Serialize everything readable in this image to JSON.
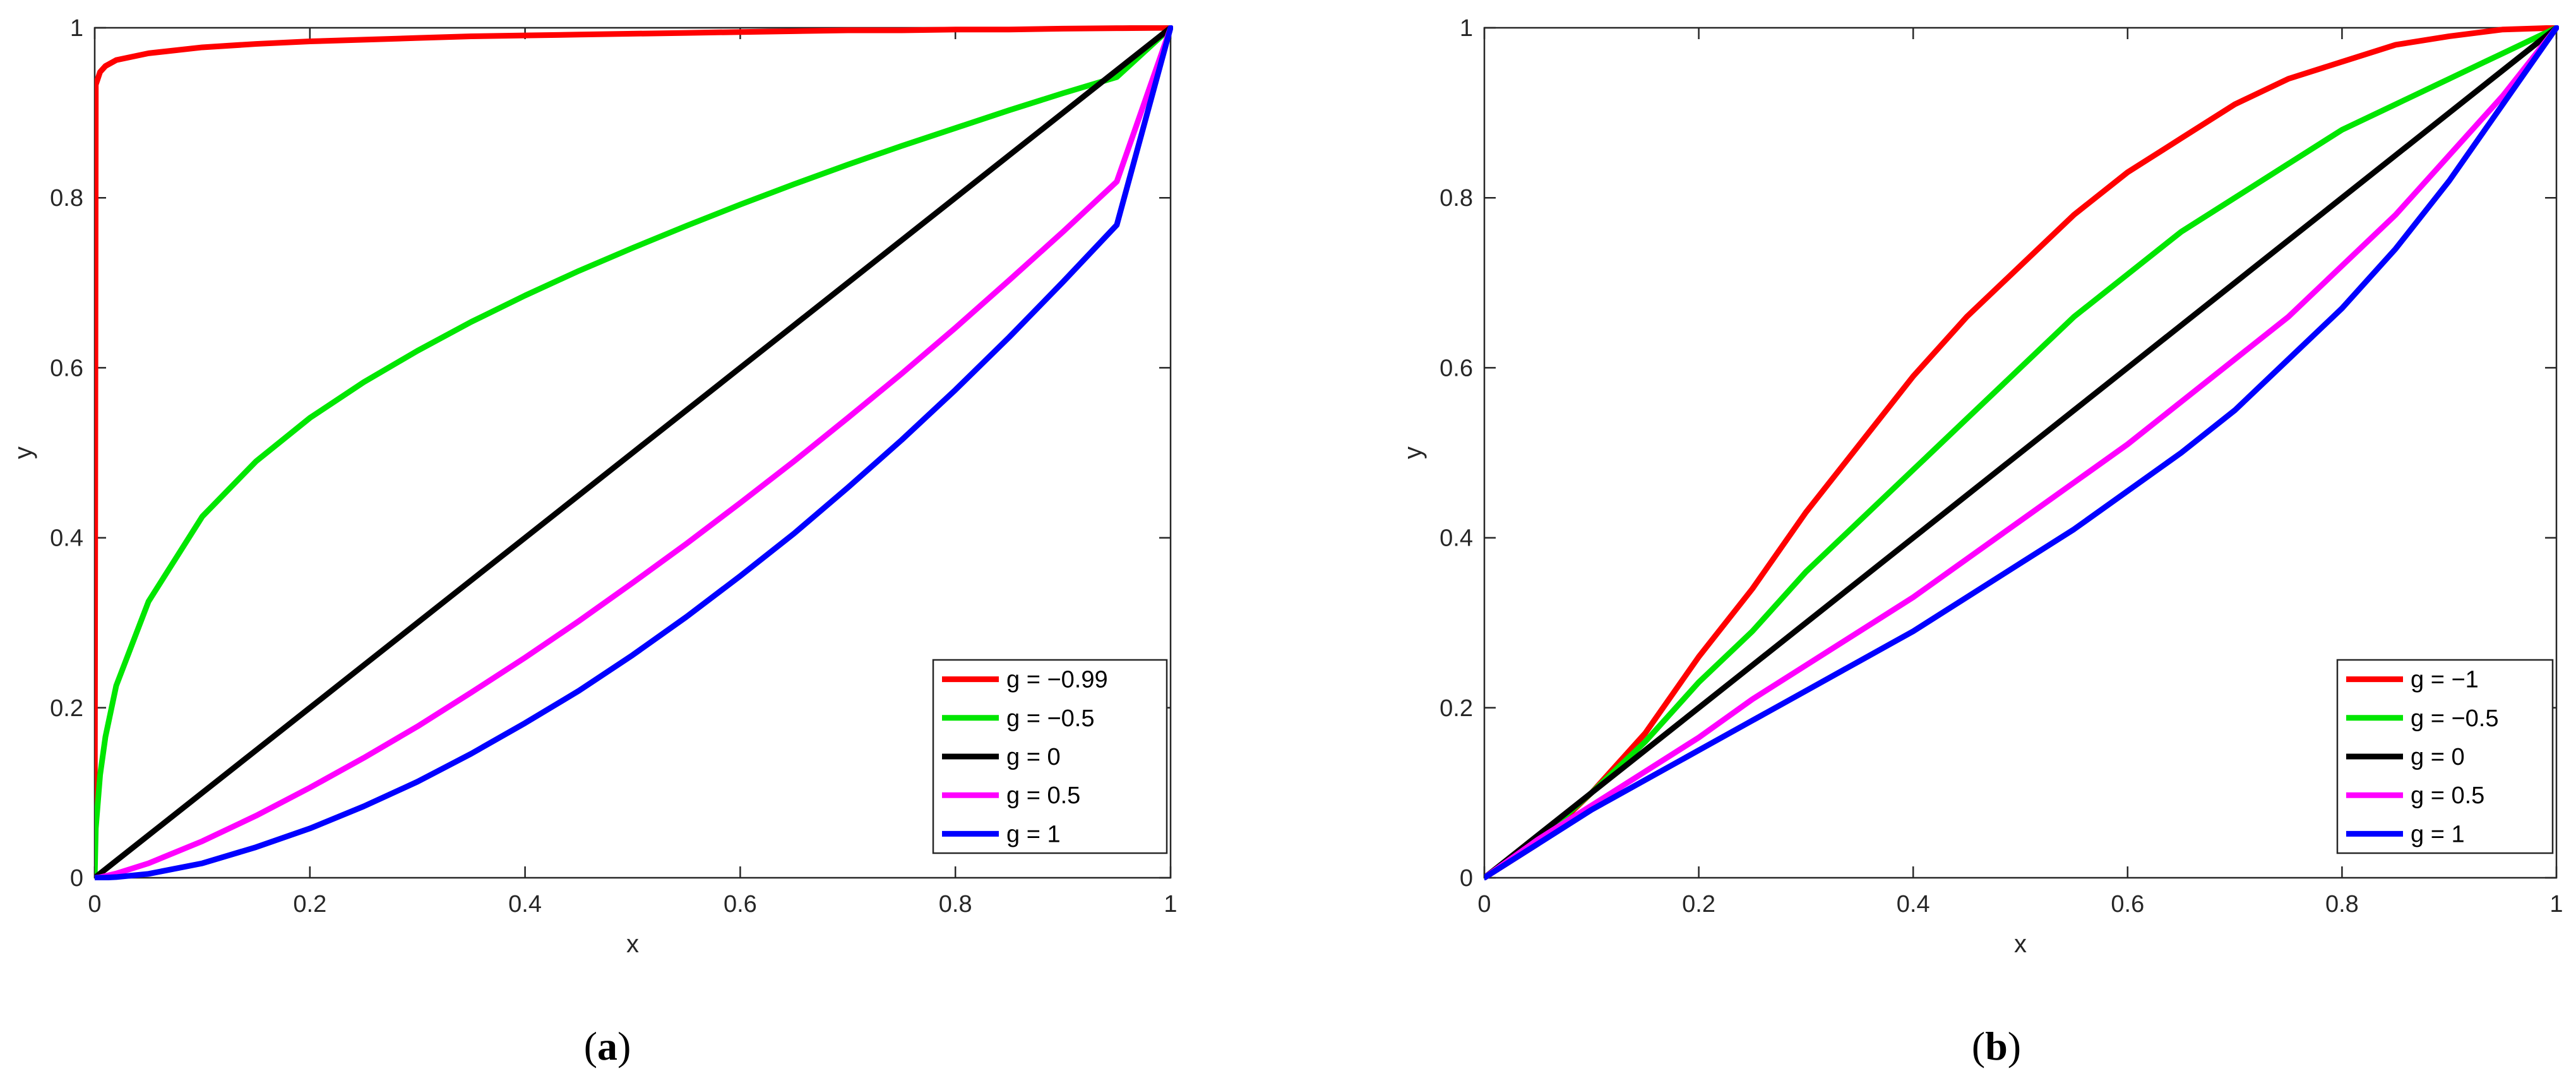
{
  "chart_data": [
    {
      "type": "line",
      "caption": "a",
      "xlabel": "x",
      "ylabel": "y",
      "xlim": [
        0,
        1
      ],
      "ylim": [
        0,
        1
      ],
      "xticks": [
        "0",
        "0.2",
        "0.4",
        "0.6",
        "0.8",
        "1"
      ],
      "yticks": [
        "0",
        "0.2",
        "0.4",
        "0.6",
        "0.8",
        "1"
      ],
      "grid": false,
      "legend_position": "bottom-right",
      "x": [
        0,
        0.001,
        0.005,
        0.01,
        0.02,
        0.05,
        0.1,
        0.15,
        0.2,
        0.25,
        0.3,
        0.35,
        0.4,
        0.45,
        0.5,
        0.55,
        0.6,
        0.65,
        0.7,
        0.75,
        0.8,
        0.85,
        0.9,
        0.95,
        1
      ],
      "series": [
        {
          "name": "g = −0.99",
          "color": "#ff0000",
          "values": [
            0,
            0.933,
            0.948,
            0.955,
            0.962,
            0.97,
            0.977,
            0.981,
            0.984,
            0.986,
            0.988,
            0.99,
            0.991,
            0.992,
            0.993,
            0.994,
            0.995,
            0.996,
            0.997,
            0.997,
            0.998,
            0.998,
            0.999,
            0.9995,
            1
          ]
        },
        {
          "name": "g = −0.5",
          "color": "#00e600",
          "values": [
            0,
            0.058,
            0.121,
            0.166,
            0.226,
            0.325,
            0.425,
            0.49,
            0.541,
            0.583,
            0.62,
            0.654,
            0.685,
            0.714,
            0.741,
            0.767,
            0.792,
            0.816,
            0.839,
            0.861,
            0.882,
            0.903,
            0.923,
            0.942,
            1
          ]
        },
        {
          "name": "g = 0",
          "color": "#000000",
          "values": [
            0,
            0.001,
            0.005,
            0.01,
            0.02,
            0.05,
            0.1,
            0.15,
            0.2,
            0.25,
            0.3,
            0.35,
            0.4,
            0.45,
            0.5,
            0.55,
            0.6,
            0.65,
            0.7,
            0.75,
            0.8,
            0.85,
            0.9,
            0.95,
            1
          ]
        },
        {
          "name": "g = 0.5",
          "color": "#ff00ff",
          "values": [
            0,
            0.0001,
            0.0006,
            0.002,
            0.005,
            0.017,
            0.043,
            0.073,
            0.106,
            0.141,
            0.178,
            0.218,
            0.259,
            0.302,
            0.347,
            0.393,
            0.441,
            0.49,
            0.541,
            0.593,
            0.647,
            0.703,
            0.76,
            0.819,
            1
          ]
        },
        {
          "name": "g = 1",
          "color": "#0000ff",
          "values": [
            0,
            0,
            0.0001,
            0.0002,
            0.0008,
            0.0046,
            0.017,
            0.036,
            0.058,
            0.084,
            0.113,
            0.146,
            0.182,
            0.22,
            0.262,
            0.307,
            0.355,
            0.405,
            0.459,
            0.515,
            0.574,
            0.636,
            0.701,
            0.768,
            1
          ]
        }
      ]
    },
    {
      "type": "line",
      "caption": "b",
      "xlabel": "x",
      "ylabel": "y",
      "xlim": [
        0,
        1
      ],
      "ylim": [
        0,
        1
      ],
      "xticks": [
        "0",
        "0.2",
        "0.4",
        "0.6",
        "0.8",
        "1"
      ],
      "yticks": [
        "0",
        "0.2",
        "0.4",
        "0.6",
        "0.8",
        "1"
      ],
      "grid": false,
      "legend_position": "bottom-right",
      "x": [
        0,
        0.05,
        0.1,
        0.15,
        0.2,
        0.25,
        0.3,
        0.35,
        0.4,
        0.45,
        0.5,
        0.55,
        0.6,
        0.65,
        0.7,
        0.75,
        0.8,
        0.85,
        0.9,
        0.95,
        1
      ],
      "series": [
        {
          "name": "g = −1",
          "color": "#ff0000",
          "values": [
            0,
            0.04,
            0.1,
            0.17,
            0.26,
            0.34,
            0.43,
            0.51,
            0.59,
            0.66,
            0.72,
            0.78,
            0.83,
            0.87,
            0.91,
            0.94,
            0.96,
            0.98,
            0.99,
            0.998,
            1
          ]
        },
        {
          "name": "g = −0.5",
          "color": "#00e600",
          "values": [
            0,
            0.045,
            0.1,
            0.16,
            0.23,
            0.29,
            0.36,
            0.42,
            0.48,
            0.54,
            0.6,
            0.66,
            0.71,
            0.76,
            0.8,
            0.84,
            0.88,
            0.91,
            0.94,
            0.97,
            1
          ]
        },
        {
          "name": "g = 0",
          "color": "#000000",
          "values": [
            0,
            0.05,
            0.1,
            0.15,
            0.2,
            0.25,
            0.3,
            0.35,
            0.4,
            0.45,
            0.5,
            0.55,
            0.6,
            0.65,
            0.7,
            0.75,
            0.8,
            0.85,
            0.9,
            0.95,
            1
          ]
        },
        {
          "name": "g = 0.5",
          "color": "#ff00ff",
          "values": [
            0,
            0.045,
            0.085,
            0.125,
            0.165,
            0.21,
            0.25,
            0.29,
            0.33,
            0.375,
            0.42,
            0.465,
            0.51,
            0.56,
            0.61,
            0.66,
            0.72,
            0.78,
            0.85,
            0.92,
            1
          ]
        },
        {
          "name": "g = 1",
          "color": "#0000ff",
          "values": [
            0,
            0.04,
            0.08,
            0.115,
            0.15,
            0.185,
            0.22,
            0.255,
            0.29,
            0.33,
            0.37,
            0.41,
            0.455,
            0.5,
            0.55,
            0.61,
            0.67,
            0.74,
            0.82,
            0.91,
            1
          ]
        }
      ]
    }
  ]
}
